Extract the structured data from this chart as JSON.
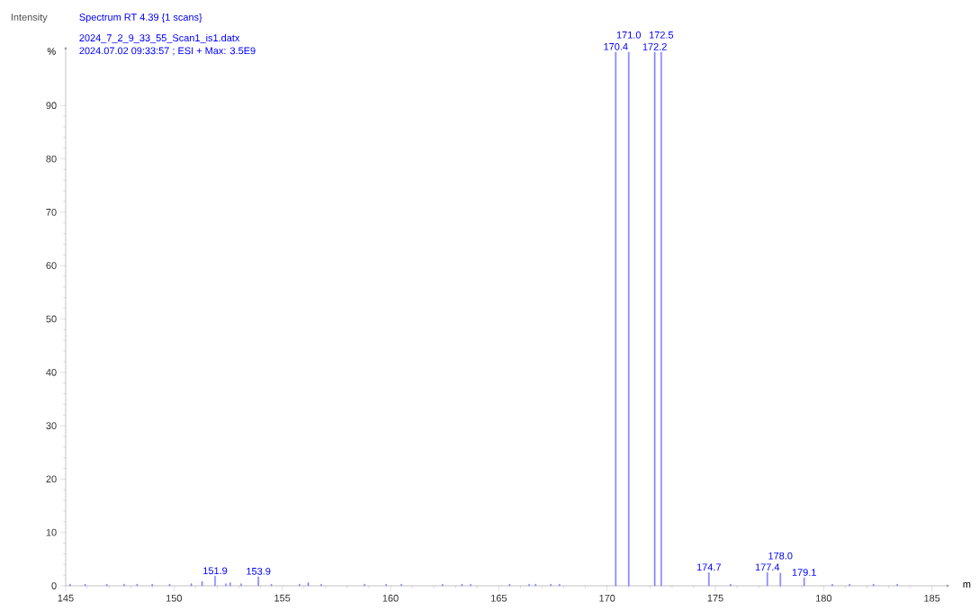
{
  "chart_data": {
    "type": "bar",
    "title": "Spectrum RT 4.39 {1 scans}",
    "subtitle": "2024_7_2_9_33_55_Scan1_is1.datx",
    "xlabel": "m",
    "ylabel": "Intensity",
    "annotations": [
      "2024.07.02 09:33:57 ; ESI + Max: 3.5E9",
      "%",
      {
        "text": "151.9",
        "x": 151.9,
        "y": 1.8
      },
      {
        "text": "153.9",
        "x": 153.9,
        "y": 1.7
      },
      {
        "text": "170.4",
        "x": 170.4,
        "y": 100
      },
      {
        "text": "171.0",
        "x": 171.0,
        "y": 100
      },
      {
        "text": "172.2",
        "x": 172.2,
        "y": 100
      },
      {
        "text": "172.5",
        "x": 172.5,
        "y": 100
      },
      {
        "text": "174.7",
        "x": 174.7,
        "y": 2.5
      },
      {
        "text": "177.4",
        "x": 177.4,
        "y": 2.5
      },
      {
        "text": "178.0",
        "x": 178.0,
        "y": 2.4
      },
      {
        "text": "179.1",
        "x": 179.1,
        "y": 1.5
      }
    ],
    "color": "#8080ff",
    "x": [
      145.2,
      145.9,
      146.9,
      147.7,
      148.3,
      149.0,
      149.8,
      150.8,
      151.3,
      151.9,
      152.4,
      152.6,
      153.1,
      153.9,
      154.5,
      155.8,
      156.2,
      156.8,
      158.8,
      159.8,
      160.5,
      162.4,
      163.3,
      163.7,
      165.5,
      166.4,
      166.7,
      167.4,
      167.8,
      170.4,
      171.0,
      172.2,
      172.5,
      174.7,
      175.7,
      177.4,
      178.0,
      179.1,
      180.4,
      181.2,
      182.3,
      183.4
    ],
    "values": [
      0.3,
      0.3,
      0.3,
      0.3,
      0.3,
      0.3,
      0.3,
      0.4,
      0.8,
      1.8,
      0.4,
      0.6,
      0.4,
      1.7,
      0.3,
      0.3,
      0.6,
      0.3,
      0.3,
      0.3,
      0.3,
      0.3,
      0.3,
      0.3,
      0.3,
      0.3,
      0.3,
      0.3,
      0.3,
      100,
      100,
      100,
      100,
      2.5,
      0.3,
      2.5,
      2.4,
      1.5,
      0.3,
      0.3,
      0.3,
      0.3
    ],
    "xlim": [
      145,
      185.8
    ],
    "ylim": [
      0,
      101
    ],
    "xticks": [
      145,
      150,
      155,
      160,
      165,
      170,
      175,
      180,
      185
    ],
    "yticks": [
      0,
      10,
      20,
      30,
      40,
      50,
      60,
      70,
      80,
      90
    ]
  }
}
